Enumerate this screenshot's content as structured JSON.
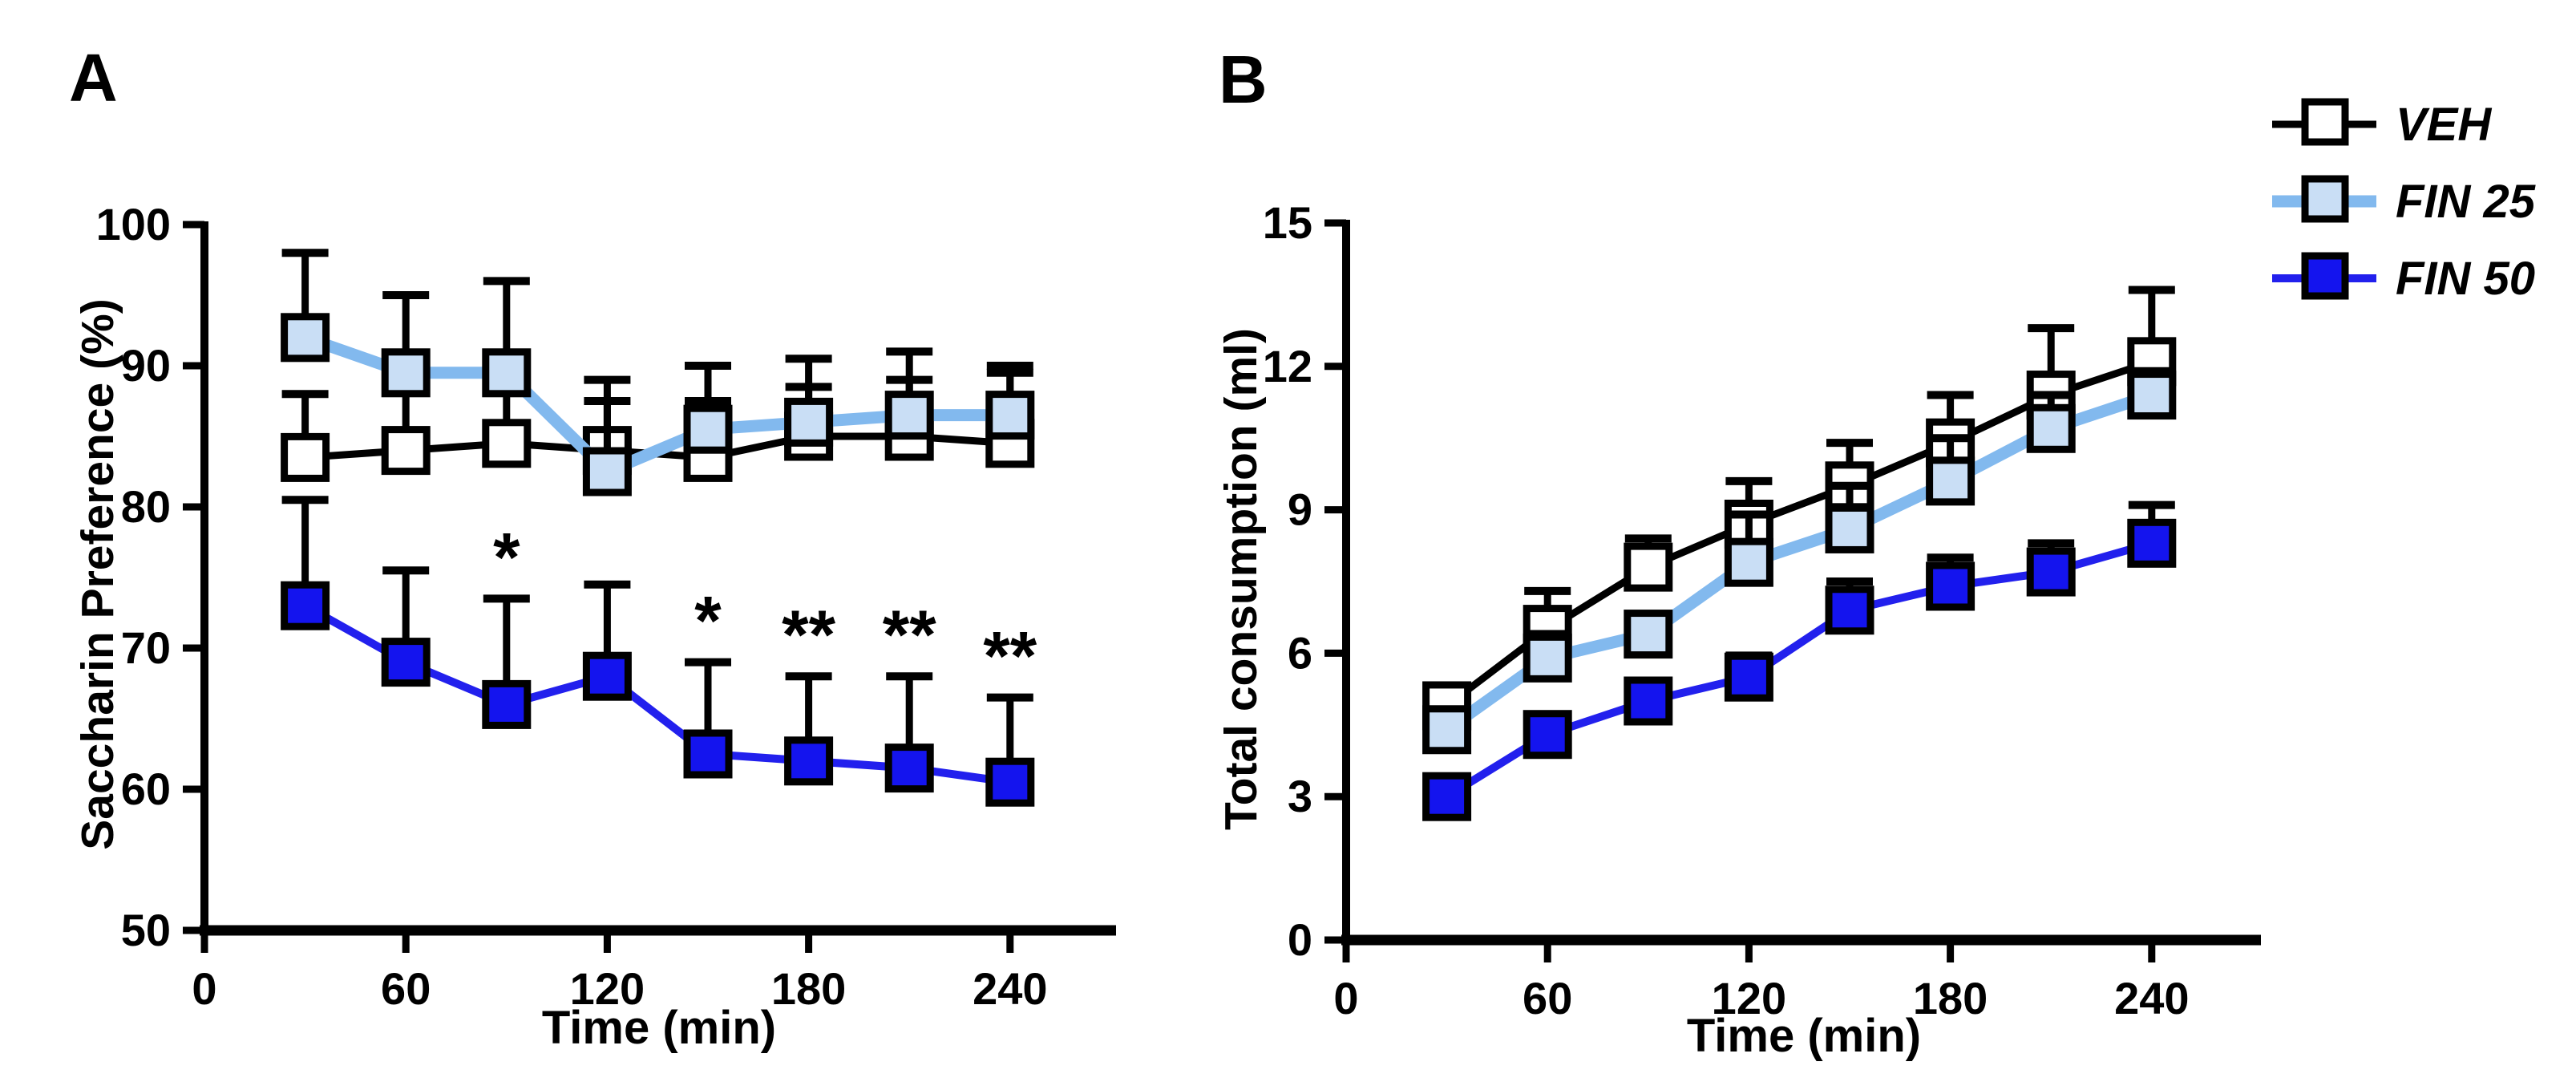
{
  "figure": {
    "background": "#ffffff"
  },
  "legend": {
    "items": [
      {
        "label": "VEH",
        "marker_fill": "#ffffff",
        "line_color": "#000000",
        "line_width": 9
      },
      {
        "label": "FIN 25",
        "marker_fill": "#c9def5",
        "line_color": "#82b9ee",
        "line_width": 15
      },
      {
        "label": "FIN 50",
        "marker_fill": "#1414ee",
        "line_color": "#2220ed",
        "line_width": 10
      }
    ]
  },
  "chart_data": [
    {
      "type": "line",
      "panel_label": "A",
      "xlabel": "Time (min)",
      "ylabel": "Saccharin Preference (%)",
      "x": [
        30,
        60,
        90,
        120,
        150,
        180,
        210,
        240
      ],
      "xticks": [
        0,
        60,
        120,
        180,
        240
      ],
      "xlim": [
        0,
        272
      ],
      "yticks": [
        50,
        60,
        70,
        80,
        90,
        100
      ],
      "ylim": [
        50,
        100
      ],
      "grid": false,
      "error_bars": "upper_only",
      "series": [
        {
          "name": "VEH",
          "marker": "square",
          "marker_fill": "#ffffff",
          "line_color": "#000000",
          "line_width": 9,
          "values": [
            83.5,
            84,
            84.5,
            84,
            83.5,
            85,
            85,
            84.5
          ],
          "err_up": [
            4.5,
            4.5,
            4.5,
            5,
            4,
            3.5,
            4,
            5
          ]
        },
        {
          "name": "FIN 25",
          "marker": "square",
          "marker_fill": "#c9def5",
          "line_color": "#82b9ee",
          "line_width": 15,
          "values": [
            92,
            89.5,
            89.5,
            82.5,
            85.5,
            86,
            86.5,
            86.5
          ],
          "err_up": [
            6,
            5.5,
            6.5,
            5,
            4.5,
            4.5,
            4.5,
            3.5
          ]
        },
        {
          "name": "FIN 50",
          "marker": "square",
          "marker_fill": "#1414ee",
          "line_color": "#2220ed",
          "line_width": 10,
          "values": [
            73,
            69,
            66,
            68,
            62.5,
            62,
            61.5,
            60.5
          ],
          "err_up": [
            7.5,
            6.5,
            7.5,
            6.5,
            6.5,
            6,
            6.5,
            6
          ]
        }
      ],
      "annotations": [
        {
          "x": 90,
          "text": "*",
          "above_series": "FIN 50"
        },
        {
          "x": 150,
          "text": "*",
          "above_series": "FIN 50"
        },
        {
          "x": 180,
          "text": "**",
          "above_series": "FIN 50"
        },
        {
          "x": 210,
          "text": "**",
          "above_series": "FIN 50"
        },
        {
          "x": 240,
          "text": "**",
          "above_series": "FIN 50"
        }
      ]
    },
    {
      "type": "line",
      "panel_label": "B",
      "xlabel": "Time (min)",
      "ylabel": "Total consumption (ml)",
      "x": [
        30,
        60,
        90,
        120,
        150,
        180,
        210,
        240
      ],
      "xticks": [
        0,
        60,
        120,
        180,
        240
      ],
      "xlim": [
        0,
        272
      ],
      "yticks": [
        0,
        3,
        6,
        9,
        12,
        15
      ],
      "ylim": [
        0,
        15
      ],
      "grid": false,
      "error_bars": "upper_only",
      "series": [
        {
          "name": "VEH",
          "marker": "square",
          "marker_fill": "#ffffff",
          "line_color": "#000000",
          "line_width": 9,
          "values": [
            4.9,
            6.5,
            7.8,
            8.7,
            9.5,
            10.4,
            11.4,
            12.1
          ],
          "err_up": [
            0.4,
            0.8,
            0.6,
            0.9,
            0.9,
            1.0,
            1.4,
            1.5
          ]
        },
        {
          "name": "FIN 25",
          "marker": "square",
          "marker_fill": "#c9def5",
          "line_color": "#82b9ee",
          "line_width": 15,
          "values": [
            4.4,
            5.9,
            6.4,
            7.9,
            8.6,
            9.6,
            10.7,
            11.4
          ],
          "err_up": [
            0.3,
            0.5,
            0.4,
            1.0,
            0.9,
            0.9,
            0.7,
            0.5
          ]
        },
        {
          "name": "FIN 50",
          "marker": "square",
          "marker_fill": "#1414ee",
          "line_color": "#2220ed",
          "line_width": 10,
          "values": [
            3.0,
            4.3,
            5.0,
            5.5,
            6.9,
            7.4,
            7.7,
            8.3
          ],
          "err_up": [
            0.2,
            0.4,
            0.3,
            0.45,
            0.6,
            0.6,
            0.6,
            0.8
          ]
        }
      ],
      "annotations": []
    }
  ]
}
